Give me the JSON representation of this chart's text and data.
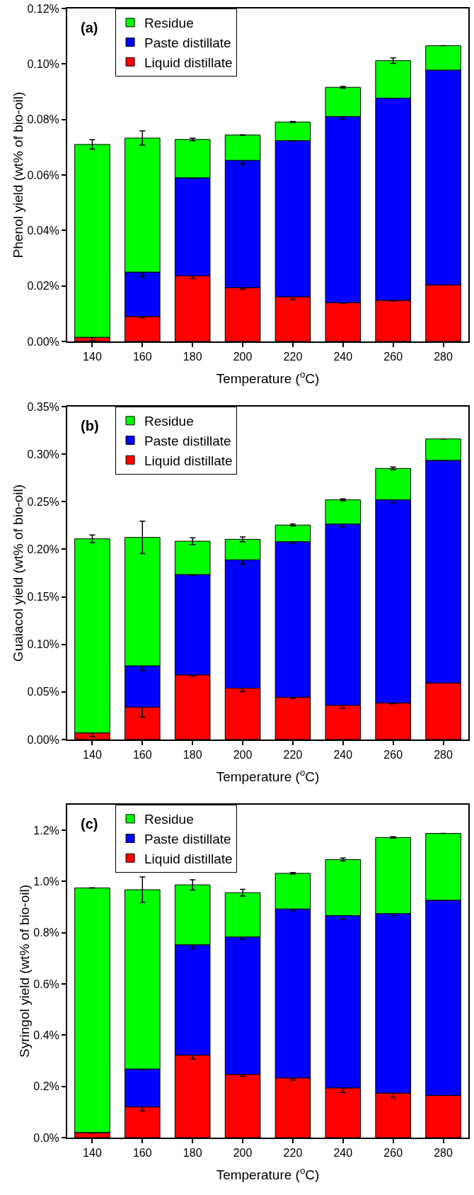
{
  "chart_data": [
    {
      "type": "bar",
      "stacked": true,
      "title": null,
      "annotations": [
        "(a)"
      ],
      "xlabel": "Temperature ($^{o}$C)",
      "ylabel": "Phenol yield (wt% of bio-oil)",
      "categories": [
        "140",
        "160",
        "180",
        "200",
        "220",
        "240",
        "260",
        "280"
      ],
      "ylim": [
        0,
        0.12
      ],
      "yticks": [
        {
          "value": 0,
          "label": "0.00%"
        },
        {
          "value": 0.02,
          "label": "0.02%"
        },
        {
          "value": 0.04,
          "label": "0.04%"
        },
        {
          "value": 0.06,
          "label": "0.06%"
        },
        {
          "value": 0.08,
          "label": "0.08%"
        },
        {
          "value": 0.1,
          "label": "0.10%"
        },
        {
          "value": 0.12,
          "label": "0.12%"
        }
      ],
      "grid": false,
      "legend": "top left",
      "series": [
        {
          "name": "Liquid distillate",
          "color": "#ff0000",
          "values": [
            0.0015,
            0.009,
            0.0237,
            0.0194,
            0.0161,
            0.014,
            0.0148,
            0.0204
          ],
          "errors": [
            0.0012,
            0.0005,
            0.001,
            0.0005,
            0.001,
            0.0003,
            0.0003,
            null
          ]
        },
        {
          "name": "Paste distillate",
          "color": "#0000ff",
          "values": [
            0,
            0.016,
            0.0353,
            0.0459,
            0.0563,
            0.0671,
            0.0729,
            0.0774
          ],
          "errors": [
            null,
            0.0018,
            0.0003,
            0.0014,
            0.0002,
            0.0009,
            0.0002,
            null
          ]
        },
        {
          "name": "Residue",
          "color": "#00ff00",
          "values": [
            0.0695,
            0.0483,
            0.0138,
            0.0091,
            0.0067,
            0.0105,
            0.0135,
            0.0088
          ],
          "errors": [
            0.0017,
            0.0026,
            0.0005,
            0.0001,
            0.0002,
            0.0003,
            0.001,
            null
          ]
        }
      ]
    },
    {
      "type": "bar",
      "stacked": true,
      "annotations": [
        "(b)"
      ],
      "xlabel": "Temperature ($^{o}$C)",
      "ylabel": "Guaiacol yield (wt% of bio-oil)",
      "categories": [
        "140",
        "160",
        "180",
        "200",
        "220",
        "240",
        "260",
        "280"
      ],
      "ylim": [
        0,
        0.35
      ],
      "yticks": [
        {
          "value": 0,
          "label": "0.00%"
        },
        {
          "value": 0.05,
          "label": "0.05%"
        },
        {
          "value": 0.1,
          "label": "0.10%"
        },
        {
          "value": 0.15,
          "label": "0.15%"
        },
        {
          "value": 0.2,
          "label": "0.20%"
        },
        {
          "value": 0.25,
          "label": "0.25%"
        },
        {
          "value": 0.3,
          "label": "0.30%"
        },
        {
          "value": 0.35,
          "label": "0.35%"
        }
      ],
      "grid": false,
      "legend": "top left",
      "series": [
        {
          "name": "Liquid distillate",
          "color": "#ff0000",
          "values": [
            0.007,
            0.034,
            0.068,
            0.054,
            0.0445,
            0.036,
            0.0385,
            0.0595
          ],
          "errors": [
            0.004,
            0.0105,
            0.0015,
            0.0035,
            0.0015,
            0.003,
            0.001,
            null
          ]
        },
        {
          "name": "Paste distillate",
          "color": "#0000ff",
          "values": [
            0,
            0.0435,
            0.1055,
            0.135,
            0.1635,
            0.1905,
            0.2135,
            0.234
          ],
          "errors": [
            null,
            0.005,
            0.001,
            0.0045,
            0.0015,
            0.003,
            0.003,
            null
          ]
        },
        {
          "name": "Residue",
          "color": "#00ff00",
          "values": [
            0.204,
            0.135,
            0.035,
            0.0215,
            0.0175,
            0.0255,
            0.033,
            0.0225
          ],
          "errors": [
            0.004,
            0.017,
            0.0035,
            0.0025,
            0.001,
            0.001,
            0.0015,
            null
          ]
        }
      ]
    },
    {
      "type": "bar",
      "stacked": true,
      "annotations": [
        "(c)"
      ],
      "xlabel": "Temperature ($^{o}$C)",
      "ylabel": "Syringol yield (wt% of bio-oil)",
      "categories": [
        "140",
        "160",
        "180",
        "200",
        "220",
        "240",
        "260",
        "280"
      ],
      "ylim": [
        0,
        1.3
      ],
      "yticks": [
        {
          "value": 0,
          "label": "0.0%"
        },
        {
          "value": 0.2,
          "label": "0.2%"
        },
        {
          "value": 0.4,
          "label": "0.4%"
        },
        {
          "value": 0.6,
          "label": "0.6%"
        },
        {
          "value": 0.8,
          "label": "0.8%"
        },
        {
          "value": 1,
          "label": "1.0%"
        },
        {
          "value": 1.2,
          "label": "1.2%"
        }
      ],
      "grid": false,
      "legend": "top left",
      "series": [
        {
          "name": "Liquid distillate",
          "color": "#ff0000",
          "values": [
            0.02,
            0.12,
            0.322,
            0.247,
            0.233,
            0.194,
            0.174,
            0.165
          ],
          "errors": [
            0.003,
            0.015,
            0.015,
            0.008,
            0.008,
            0.018,
            0.018,
            null
          ]
        },
        {
          "name": "Paste distillate",
          "color": "#0000ff",
          "values": [
            0,
            0.148,
            0.431,
            0.5365,
            0.66,
            0.673,
            0.701,
            0.762
          ],
          "errors": [
            null,
            0.003,
            0.015,
            0.01,
            0.007,
            0.015,
            0.008,
            null
          ]
        },
        {
          "name": "Residue",
          "color": "#00ff00",
          "values": [
            0.955,
            0.7,
            0.234,
            0.173,
            0.139,
            0.219,
            0.297,
            0.261
          ],
          "errors": [
            0.001,
            0.05,
            0.02,
            0.013,
            0.003,
            0.006,
            0.003,
            null
          ]
        }
      ]
    }
  ]
}
